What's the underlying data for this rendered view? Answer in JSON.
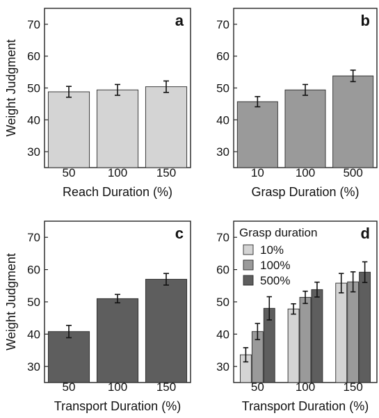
{
  "colors": {
    "light": "#d4d4d4",
    "mid": "#9a9a9a",
    "dark": "#5e5e5e",
    "axis": "#222222",
    "error_bar": "#111111"
  },
  "chart_data": [
    {
      "type": "bar",
      "panel_letter": "a",
      "ylabel": "Weight Judgment",
      "xlabel": "Reach Duration (%)",
      "ylim": [
        25,
        75
      ],
      "yticks": [
        30,
        40,
        50,
        60,
        70
      ],
      "categories": [
        "50",
        "100",
        "150"
      ],
      "series": [
        {
          "values": [
            48.8,
            49.4,
            50.4
          ],
          "errors": [
            1.7,
            1.7,
            1.8
          ],
          "color": "light"
        }
      ],
      "legend": null,
      "grid": false
    },
    {
      "type": "bar",
      "panel_letter": "b",
      "ylabel": "",
      "xlabel": "Grasp Duration (%)",
      "ylim": [
        25,
        75
      ],
      "yticks": [
        30,
        40,
        50,
        60,
        70
      ],
      "categories": [
        "10",
        "100",
        "500"
      ],
      "series": [
        {
          "values": [
            45.7,
            49.4,
            53.8
          ],
          "errors": [
            1.6,
            1.7,
            1.8
          ],
          "color": "mid"
        }
      ],
      "legend": null,
      "grid": false
    },
    {
      "type": "bar",
      "panel_letter": "c",
      "ylabel": "Weight Judgment",
      "xlabel": "Transport Duration (%)",
      "ylim": [
        25,
        75
      ],
      "yticks": [
        30,
        40,
        50,
        60,
        70
      ],
      "categories": [
        "50",
        "100",
        "150"
      ],
      "series": [
        {
          "values": [
            40.8,
            51.0,
            57.0
          ],
          "errors": [
            1.9,
            1.3,
            1.8
          ],
          "color": "dark"
        }
      ],
      "legend": null,
      "grid": false
    },
    {
      "type": "bar",
      "panel_letter": "d",
      "ylabel": "",
      "xlabel": "Transport Duration (%)",
      "ylim": [
        25,
        75
      ],
      "yticks": [
        30,
        40,
        50,
        60,
        70
      ],
      "categories": [
        "50",
        "100",
        "150"
      ],
      "legend_title": "Grasp duration",
      "series": [
        {
          "name": "10%",
          "values": [
            33.6,
            47.8,
            55.8
          ],
          "errors": [
            2.2,
            1.6,
            3.0
          ],
          "color": "light"
        },
        {
          "name": "100%",
          "values": [
            40.8,
            51.4,
            56.2
          ],
          "errors": [
            2.5,
            1.9,
            3.1
          ],
          "color": "mid"
        },
        {
          "name": "500%",
          "values": [
            48.0,
            53.8,
            59.2
          ],
          "errors": [
            3.6,
            2.3,
            3.2
          ],
          "color": "dark"
        }
      ],
      "legend": "top-left",
      "grid": false
    }
  ]
}
